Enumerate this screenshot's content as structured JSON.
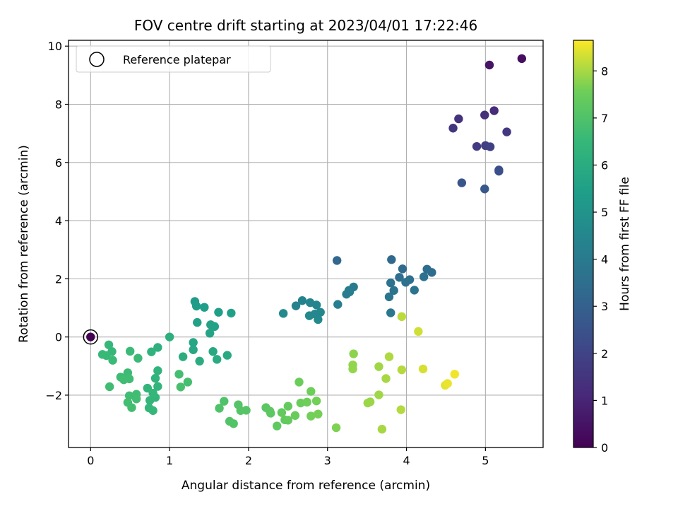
{
  "chart_data": {
    "type": "scatter",
    "title": "FOV centre drift starting at 2023/04/01 17:22:46",
    "xlabel": "Angular distance from reference (arcmin)",
    "ylabel": "Rotation from reference (arcmin)",
    "xlim": [
      -0.28,
      5.73
    ],
    "ylim": [
      -3.8,
      10.2
    ],
    "xticks": [
      0,
      1,
      2,
      3,
      4,
      5
    ],
    "yticks": [
      -2,
      0,
      2,
      4,
      6,
      8,
      10
    ],
    "xtick_labels": [
      "0",
      "1",
      "2",
      "3",
      "4",
      "5"
    ],
    "ytick_labels": [
      "−2",
      "0",
      "2",
      "4",
      "6",
      "8",
      "10"
    ],
    "grid": true,
    "legend": {
      "placement": "top-left",
      "entries": [
        "Reference platepar"
      ]
    },
    "reference_point": {
      "x": 0,
      "y": 0
    },
    "colorbar": {
      "label": "Hours from first FF file",
      "colormap": "viridis",
      "range": [
        0,
        8.65
      ],
      "ticks": [
        0,
        1,
        2,
        3,
        4,
        5,
        6,
        7,
        8
      ],
      "tick_labels": [
        "0",
        "1",
        "2",
        "3",
        "4",
        "5",
        "6",
        "7",
        "8"
      ]
    },
    "points": [
      {
        "x": 0.0,
        "y": 0.0,
        "h": 0.0
      },
      {
        "x": 5.46,
        "y": 9.57,
        "h": 0.35
      },
      {
        "x": 5.05,
        "y": 9.35,
        "h": 0.5
      },
      {
        "x": 5.11,
        "y": 7.78,
        "h": 1.2
      },
      {
        "x": 4.99,
        "y": 7.63,
        "h": 1.3
      },
      {
        "x": 4.66,
        "y": 7.5,
        "h": 1.4
      },
      {
        "x": 4.59,
        "y": 7.18,
        "h": 1.5
      },
      {
        "x": 5.27,
        "y": 7.05,
        "h": 1.6
      },
      {
        "x": 4.89,
        "y": 6.55,
        "h": 1.7
      },
      {
        "x": 5.0,
        "y": 6.58,
        "h": 1.8
      },
      {
        "x": 5.06,
        "y": 6.54,
        "h": 1.9
      },
      {
        "x": 5.17,
        "y": 5.74,
        "h": 2.3
      },
      {
        "x": 5.17,
        "y": 5.7,
        "h": 2.4
      },
      {
        "x": 4.7,
        "y": 5.3,
        "h": 2.6
      },
      {
        "x": 4.99,
        "y": 5.09,
        "h": 2.7
      },
      {
        "x": 3.12,
        "y": 2.63,
        "h": 3.2
      },
      {
        "x": 3.81,
        "y": 2.66,
        "h": 3.3
      },
      {
        "x": 3.95,
        "y": 2.34,
        "h": 3.35
      },
      {
        "x": 4.26,
        "y": 2.33,
        "h": 3.4
      },
      {
        "x": 4.32,
        "y": 2.22,
        "h": 3.45
      },
      {
        "x": 3.91,
        "y": 2.05,
        "h": 3.5
      },
      {
        "x": 4.04,
        "y": 1.97,
        "h": 3.55
      },
      {
        "x": 4.22,
        "y": 2.07,
        "h": 3.6
      },
      {
        "x": 3.99,
        "y": 1.88,
        "h": 3.62
      },
      {
        "x": 3.8,
        "y": 1.86,
        "h": 3.65
      },
      {
        "x": 3.84,
        "y": 1.6,
        "h": 3.7
      },
      {
        "x": 4.1,
        "y": 1.61,
        "h": 3.75
      },
      {
        "x": 3.78,
        "y": 1.38,
        "h": 3.8
      },
      {
        "x": 3.8,
        "y": 0.83,
        "h": 3.85
      },
      {
        "x": 3.33,
        "y": 1.72,
        "h": 4.0
      },
      {
        "x": 3.27,
        "y": 1.6,
        "h": 4.05
      },
      {
        "x": 3.24,
        "y": 1.47,
        "h": 4.1
      },
      {
        "x": 3.28,
        "y": 1.55,
        "h": 4.12
      },
      {
        "x": 3.13,
        "y": 1.12,
        "h": 4.15
      },
      {
        "x": 2.68,
        "y": 1.25,
        "h": 4.3
      },
      {
        "x": 2.6,
        "y": 1.07,
        "h": 4.35
      },
      {
        "x": 2.78,
        "y": 1.18,
        "h": 4.4
      },
      {
        "x": 2.86,
        "y": 1.1,
        "h": 4.45
      },
      {
        "x": 2.91,
        "y": 0.85,
        "h": 4.5
      },
      {
        "x": 2.84,
        "y": 0.79,
        "h": 4.52
      },
      {
        "x": 2.77,
        "y": 0.73,
        "h": 4.55
      },
      {
        "x": 2.88,
        "y": 0.6,
        "h": 4.58
      },
      {
        "x": 2.44,
        "y": 0.81,
        "h": 4.6
      },
      {
        "x": 1.32,
        "y": 1.22,
        "h": 5.3
      },
      {
        "x": 1.34,
        "y": 1.06,
        "h": 5.35
      },
      {
        "x": 1.44,
        "y": 1.02,
        "h": 5.4
      },
      {
        "x": 1.62,
        "y": 0.85,
        "h": 5.45
      },
      {
        "x": 1.78,
        "y": 0.82,
        "h": 5.5
      },
      {
        "x": 1.35,
        "y": 0.5,
        "h": 5.55
      },
      {
        "x": 1.52,
        "y": 0.42,
        "h": 5.58
      },
      {
        "x": 1.57,
        "y": 0.36,
        "h": 5.6
      },
      {
        "x": 1.51,
        "y": 0.13,
        "h": 5.65
      },
      {
        "x": 1.3,
        "y": -0.19,
        "h": 5.75
      },
      {
        "x": 1.3,
        "y": -0.44,
        "h": 5.8
      },
      {
        "x": 1.55,
        "y": -0.5,
        "h": 5.85
      },
      {
        "x": 1.73,
        "y": -0.63,
        "h": 5.9
      },
      {
        "x": 1.6,
        "y": -0.77,
        "h": 5.95
      },
      {
        "x": 1.38,
        "y": -0.83,
        "h": 6.0
      },
      {
        "x": 1.17,
        "y": -0.68,
        "h": 6.05
      },
      {
        "x": 1.0,
        "y": 0.0,
        "h": 6.15
      },
      {
        "x": 0.85,
        "y": -0.36,
        "h": 6.2
      },
      {
        "x": 0.77,
        "y": -0.51,
        "h": 6.25
      },
      {
        "x": 0.85,
        "y": -1.16,
        "h": 6.3
      },
      {
        "x": 0.82,
        "y": -1.42,
        "h": 6.3
      },
      {
        "x": 0.85,
        "y": -1.7,
        "h": 6.35
      },
      {
        "x": 0.72,
        "y": -1.76,
        "h": 6.35
      },
      {
        "x": 0.82,
        "y": -2.08,
        "h": 6.4
      },
      {
        "x": 0.75,
        "y": -2.18,
        "h": 6.4
      },
      {
        "x": 0.79,
        "y": -1.93,
        "h": 6.45
      },
      {
        "x": 0.74,
        "y": -2.44,
        "h": 6.45
      },
      {
        "x": 0.79,
        "y": -2.53,
        "h": 6.5
      },
      {
        "x": 0.23,
        "y": -0.27,
        "h": 6.5
      },
      {
        "x": 0.27,
        "y": -0.5,
        "h": 6.5
      },
      {
        "x": 0.15,
        "y": -0.6,
        "h": 6.55
      },
      {
        "x": 0.2,
        "y": -0.64,
        "h": 6.55
      },
      {
        "x": 0.28,
        "y": -0.8,
        "h": 6.6
      },
      {
        "x": 0.5,
        "y": -0.49,
        "h": 6.6
      },
      {
        "x": 0.6,
        "y": -0.73,
        "h": 6.6
      },
      {
        "x": 0.47,
        "y": -1.23,
        "h": 6.65
      },
      {
        "x": 0.38,
        "y": -1.38,
        "h": 6.65
      },
      {
        "x": 0.49,
        "y": -1.44,
        "h": 6.7
      },
      {
        "x": 0.42,
        "y": -1.47,
        "h": 6.7
      },
      {
        "x": 0.24,
        "y": -1.71,
        "h": 6.7
      },
      {
        "x": 0.49,
        "y": -2.02,
        "h": 6.72
      },
      {
        "x": 0.58,
        "y": -1.97,
        "h": 6.72
      },
      {
        "x": 0.58,
        "y": -2.13,
        "h": 6.75
      },
      {
        "x": 0.47,
        "y": -2.25,
        "h": 6.75
      },
      {
        "x": 0.52,
        "y": -2.43,
        "h": 6.78
      },
      {
        "x": 1.12,
        "y": -1.28,
        "h": 6.8
      },
      {
        "x": 1.23,
        "y": -1.55,
        "h": 6.8
      },
      {
        "x": 1.14,
        "y": -1.72,
        "h": 6.85
      },
      {
        "x": 1.69,
        "y": -2.21,
        "h": 7.0
      },
      {
        "x": 1.63,
        "y": -2.45,
        "h": 7.0
      },
      {
        "x": 1.76,
        "y": -2.9,
        "h": 7.05
      },
      {
        "x": 1.81,
        "y": -2.98,
        "h": 7.05
      },
      {
        "x": 1.87,
        "y": -2.33,
        "h": 7.1
      },
      {
        "x": 1.9,
        "y": -2.53,
        "h": 7.1
      },
      {
        "x": 1.97,
        "y": -2.52,
        "h": 7.12
      },
      {
        "x": 2.22,
        "y": -2.43,
        "h": 7.2
      },
      {
        "x": 2.27,
        "y": -2.55,
        "h": 7.22
      },
      {
        "x": 2.28,
        "y": -2.62,
        "h": 7.25
      },
      {
        "x": 2.36,
        "y": -3.06,
        "h": 7.3
      },
      {
        "x": 2.42,
        "y": -2.6,
        "h": 7.35
      },
      {
        "x": 2.46,
        "y": -2.85,
        "h": 7.35
      },
      {
        "x": 2.5,
        "y": -2.86,
        "h": 7.4
      },
      {
        "x": 2.5,
        "y": -2.38,
        "h": 7.4
      },
      {
        "x": 2.59,
        "y": -2.7,
        "h": 7.45
      },
      {
        "x": 2.64,
        "y": -1.55,
        "h": 7.5
      },
      {
        "x": 2.66,
        "y": -2.27,
        "h": 7.5
      },
      {
        "x": 2.74,
        "y": -2.24,
        "h": 7.55
      },
      {
        "x": 2.79,
        "y": -1.87,
        "h": 7.55
      },
      {
        "x": 2.79,
        "y": -2.72,
        "h": 7.6
      },
      {
        "x": 2.86,
        "y": -2.2,
        "h": 7.6
      },
      {
        "x": 2.88,
        "y": -2.65,
        "h": 7.62
      },
      {
        "x": 3.11,
        "y": -3.12,
        "h": 7.7
      },
      {
        "x": 3.33,
        "y": -0.58,
        "h": 7.8
      },
      {
        "x": 3.32,
        "y": -0.96,
        "h": 7.85
      },
      {
        "x": 3.32,
        "y": -1.1,
        "h": 7.85
      },
      {
        "x": 3.51,
        "y": -2.27,
        "h": 7.9
      },
      {
        "x": 3.54,
        "y": -2.23,
        "h": 7.9
      },
      {
        "x": 3.65,
        "y": -1.02,
        "h": 7.95
      },
      {
        "x": 3.65,
        "y": -1.99,
        "h": 7.95
      },
      {
        "x": 3.69,
        "y": -3.17,
        "h": 8.0
      },
      {
        "x": 3.74,
        "y": -1.43,
        "h": 8.0
      },
      {
        "x": 3.78,
        "y": -0.68,
        "h": 8.05
      },
      {
        "x": 3.93,
        "y": -2.5,
        "h": 8.1
      },
      {
        "x": 3.94,
        "y": -1.13,
        "h": 8.1
      },
      {
        "x": 3.94,
        "y": 0.7,
        "h": 8.15
      },
      {
        "x": 4.15,
        "y": 0.19,
        "h": 8.3
      },
      {
        "x": 4.21,
        "y": -1.1,
        "h": 8.35
      },
      {
        "x": 4.49,
        "y": -1.66,
        "h": 8.45
      },
      {
        "x": 4.52,
        "y": -1.6,
        "h": 8.5
      },
      {
        "x": 4.61,
        "y": -1.28,
        "h": 8.55
      }
    ]
  }
}
